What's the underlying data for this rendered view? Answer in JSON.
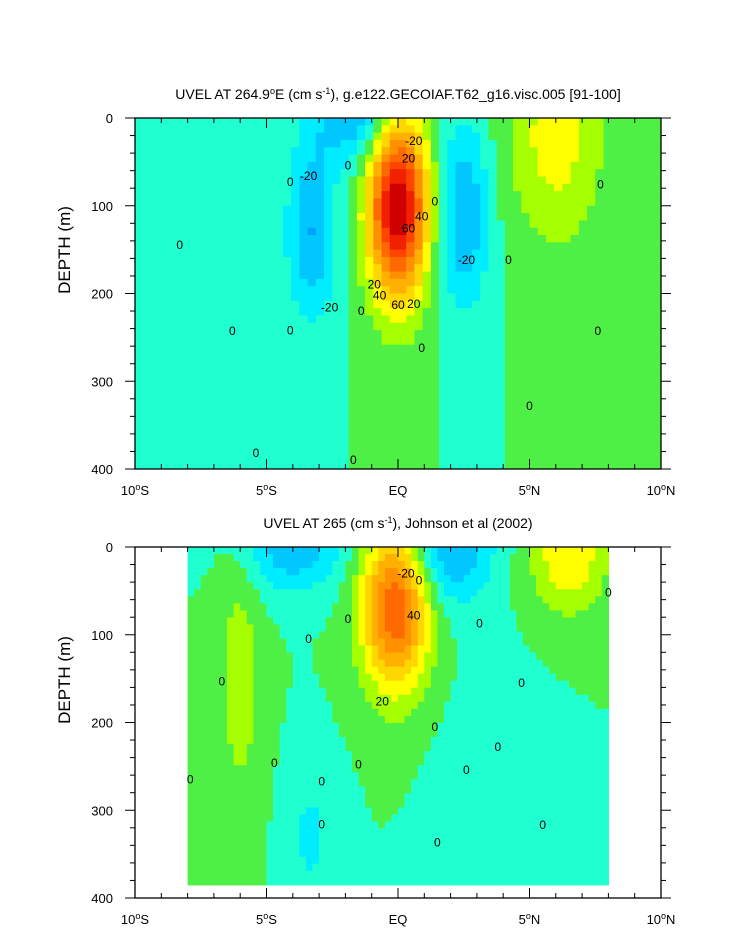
{
  "figure": {
    "panels": [
      {
        "title_main": "UVEL AT 264.9",
        "title_unit": "E (cm s",
        "title_sup": "-1",
        "title_rest": "), g.e122.GECOIAF.T62_g16.visc.005 [91-100]"
      },
      {
        "title_main": "UVEL AT 265 (cm s",
        "title_sup": "-1",
        "title_rest": "), Johnson et al (2002)"
      }
    ],
    "deg": "o"
  },
  "chart_data": [
    {
      "type": "heatmap",
      "title": "UVEL AT 264.9°E (cm s-1), g.e122.GECOIAF.T62_g16.visc.005 [91-100]",
      "xlabel": "",
      "ylabel": "DEPTH (m)",
      "xlim": [
        -10,
        10
      ],
      "ylim": [
        400,
        0
      ],
      "x_ticks": [
        -10,
        -5,
        0,
        5,
        10
      ],
      "x_tick_labels": [
        {
          "num": "10",
          "sup": "o",
          "hem": "S"
        },
        {
          "num": "5",
          "sup": "o",
          "hem": "S"
        },
        {
          "text": "EQ"
        },
        {
          "num": "5",
          "sup": "o",
          "hem": "N"
        },
        {
          "num": "10",
          "sup": "o",
          "hem": "N"
        }
      ],
      "y_ticks": [
        0,
        100,
        200,
        300,
        400
      ],
      "y_tick_labels": [
        "0",
        "100",
        "200",
        "300",
        "400"
      ],
      "contour_interval": 10,
      "data_xlim": [
        -10,
        10
      ],
      "data_depth_max": 400,
      "features": [
        {
          "name": "equatorial-undercurrent",
          "x": 0,
          "depth": 100,
          "amplitude": 100,
          "sx": 0.8,
          "sz": 75
        },
        {
          "name": "north-subsurface-westward-jet",
          "x": -3.3,
          "depth": 130,
          "amplitude": -30,
          "sx": 0.65,
          "sz": 70
        },
        {
          "name": "south-subsurface-westward-jet",
          "x": 2.5,
          "depth": 110,
          "amplitude": -30,
          "sx": 0.7,
          "sz": 75
        },
        {
          "name": "surface-westward-jet",
          "x": -1.5,
          "depth": 0,
          "amplitude": -30,
          "sx": 1.2,
          "sz": 40
        },
        {
          "name": "north-surface-eastward-flow",
          "x": 6,
          "depth": 20,
          "amplitude": 25,
          "sx": 1.3,
          "sz": 90
        }
      ],
      "contour_labels": [
        {
          "text": "0",
          "x": -8.3,
          "depth": 145
        },
        {
          "text": "0",
          "x": -4.1,
          "depth": 73
        },
        {
          "text": "0",
          "x": -6.3,
          "depth": 243
        },
        {
          "text": "0",
          "x": -4.1,
          "depth": 242
        },
        {
          "text": "0",
          "x": -5.4,
          "depth": 382
        },
        {
          "text": "0",
          "x": -1.9,
          "depth": 54
        },
        {
          "text": "0",
          "x": -1.7,
          "depth": 390
        },
        {
          "text": "0",
          "x": -1.4,
          "depth": 220
        },
        {
          "text": "0",
          "x": 1.4,
          "depth": 95
        },
        {
          "text": "0",
          "x": 0.9,
          "depth": 262
        },
        {
          "text": "0",
          "x": 4.2,
          "depth": 162
        },
        {
          "text": "0",
          "x": 5,
          "depth": 328
        },
        {
          "text": "0",
          "x": 7.7,
          "depth": 76
        },
        {
          "text": "0",
          "x": 7.6,
          "depth": 243
        },
        {
          "text": "-20",
          "x": -3.4,
          "depth": 66
        },
        {
          "text": "-20",
          "x": -2.6,
          "depth": 216
        },
        {
          "text": "-20",
          "x": 0.6,
          "depth": 26
        },
        {
          "text": "-20",
          "x": 2.6,
          "depth": 162
        },
        {
          "text": "20",
          "x": 0.4,
          "depth": 46
        },
        {
          "text": "40",
          "x": 0.9,
          "depth": 112
        },
        {
          "text": "60",
          "x": 0.4,
          "depth": 126
        },
        {
          "text": "60",
          "x": 0,
          "depth": 213
        },
        {
          "text": "20",
          "x": -0.9,
          "depth": 190
        },
        {
          "text": "40",
          "x": -0.7,
          "depth": 202
        },
        {
          "text": "20",
          "x": 0.6,
          "depth": 212
        }
      ]
    },
    {
      "type": "heatmap",
      "title": "UVEL AT 265 (cm s-1), Johnson et al (2002)",
      "xlabel": "",
      "ylabel": "DEPTH (m)",
      "xlim": [
        -10,
        10
      ],
      "ylim": [
        400,
        0
      ],
      "x_ticks": [
        -10,
        -5,
        0,
        5,
        10
      ],
      "x_tick_labels": [
        {
          "num": "10",
          "sup": "o",
          "hem": "S"
        },
        {
          "num": "5",
          "sup": "o",
          "hem": "S"
        },
        {
          "text": "EQ"
        },
        {
          "num": "5",
          "sup": "o",
          "hem": "N"
        },
        {
          "num": "10",
          "sup": "o",
          "hem": "N"
        }
      ],
      "y_ticks": [
        0,
        100,
        200,
        300,
        400
      ],
      "y_tick_labels": [
        "0",
        "100",
        "200",
        "300",
        "400"
      ],
      "contour_interval": 10,
      "data_xlim": [
        -8,
        8
      ],
      "data_depth_max": 385,
      "features": [
        {
          "name": "equatorial-undercurrent",
          "x": -0.1,
          "depth": 70,
          "amplitude": 70,
          "sx": 0.9,
          "sz": 65
        },
        {
          "name": "surface-westward-jet-north",
          "x": -4,
          "depth": 0,
          "amplitude": -28,
          "sx": 1.3,
          "sz": 35
        },
        {
          "name": "surface-westward-jet-south",
          "x": 2,
          "depth": 0,
          "amplitude": -32,
          "sx": 1.1,
          "sz": 45
        },
        {
          "name": "north-eastward-flow",
          "x": 6.5,
          "depth": 10,
          "amplitude": 30,
          "sx": 1.0,
          "sz": 45
        },
        {
          "name": "south-subsurface-eastward-jet",
          "x": -6,
          "depth": 150,
          "amplitude": 15,
          "sx": 0.6,
          "sz": 110
        },
        {
          "name": "deep-westward-cell",
          "x": -3.3,
          "depth": 330,
          "amplitude": -12,
          "sx": 0.7,
          "sz": 60
        },
        {
          "name": "deep-westward-cell-south",
          "x": 3.5,
          "depth": 300,
          "amplitude": -10,
          "sx": 1.2,
          "sz": 90
        }
      ],
      "contour_labels": [
        {
          "text": "0",
          "x": -6.7,
          "depth": 153
        },
        {
          "text": "0",
          "x": -3.4,
          "depth": 105
        },
        {
          "text": "0",
          "x": -1.9,
          "depth": 82
        },
        {
          "text": "0",
          "x": -7.9,
          "depth": 265
        },
        {
          "text": "0",
          "x": -4.7,
          "depth": 246
        },
        {
          "text": "0",
          "x": -2.9,
          "depth": 267
        },
        {
          "text": "0",
          "x": -1.5,
          "depth": 248
        },
        {
          "text": "0",
          "x": -2.9,
          "depth": 316
        },
        {
          "text": "0",
          "x": 1.4,
          "depth": 205
        },
        {
          "text": "0",
          "x": 3.1,
          "depth": 87
        },
        {
          "text": "0",
          "x": 4.7,
          "depth": 155
        },
        {
          "text": "0",
          "x": 2.6,
          "depth": 254
        },
        {
          "text": "0",
          "x": 3.8,
          "depth": 228
        },
        {
          "text": "0",
          "x": 5.5,
          "depth": 317
        },
        {
          "text": "0",
          "x": 1.5,
          "depth": 337
        },
        {
          "text": "0",
          "x": 8,
          "depth": 52
        },
        {
          "text": "0",
          "x": 0.8,
          "depth": 38
        },
        {
          "text": "-20",
          "x": 0.3,
          "depth": 30
        },
        {
          "text": "40",
          "x": 0.6,
          "depth": 78
        },
        {
          "text": "20",
          "x": -0.6,
          "depth": 176
        }
      ]
    }
  ]
}
